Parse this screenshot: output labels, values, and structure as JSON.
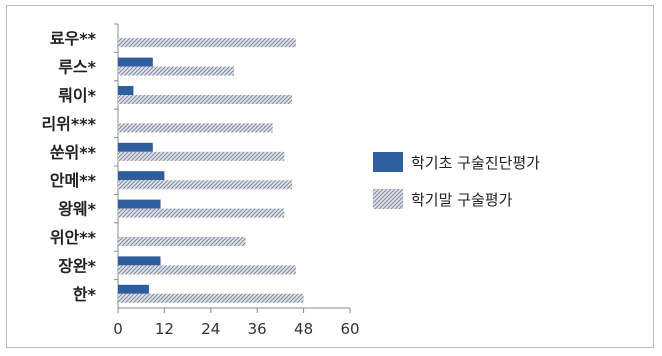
{
  "chart_data": {
    "type": "bar",
    "orientation": "horizontal",
    "categories": [
      "료우**",
      "루스*",
      "뤄이*",
      "리위***",
      "쑨위**",
      "안메**",
      "왕웨*",
      "위안**",
      "장완*",
      "한*"
    ],
    "series": [
      {
        "name": "학기초 구술진단평가",
        "values": [
          0,
          9,
          4,
          0,
          9,
          12,
          11,
          0,
          11,
          8
        ],
        "color": "#2e5e9e",
        "pattern": "solid"
      },
      {
        "name": "학기말 구술평가",
        "values": [
          46,
          30,
          45,
          40,
          43,
          45,
          43,
          33,
          46,
          48
        ],
        "color": "#9aa6b8",
        "pattern": "hatched"
      }
    ],
    "xlim": [
      0,
      60
    ],
    "xticks": [
      0,
      12,
      24,
      36,
      48,
      60
    ],
    "grid": false,
    "legend_position": "right",
    "title": "",
    "xlabel": "",
    "ylabel": ""
  }
}
